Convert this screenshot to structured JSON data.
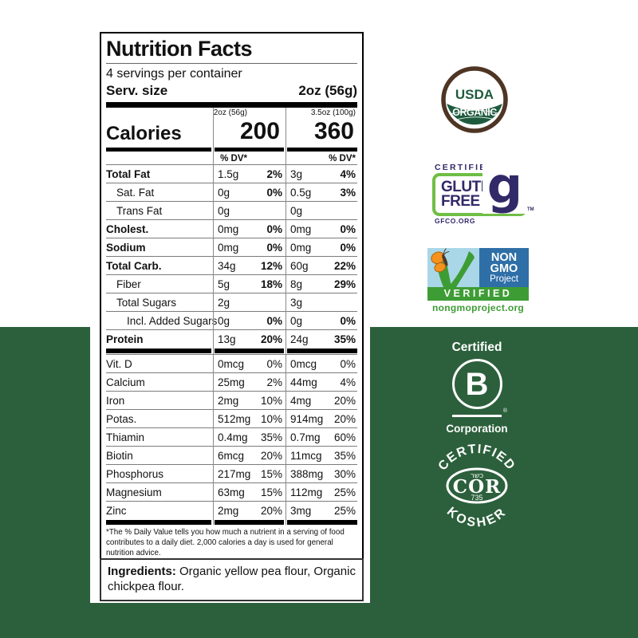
{
  "colors": {
    "background_green": "#2C603C",
    "label_black": "#000000",
    "usda_green": "#1E5B3E",
    "usda_brown": "#4E3524",
    "gf_purple": "#322968",
    "gf_green": "#6FBE45",
    "ngmo_sky": "#A9D7E8",
    "ngmo_blue": "#2E6FA7",
    "ngmo_green": "#3E9C35",
    "ngmo_orange": "#F5921E"
  },
  "nutrition_label": {
    "title": "Nutrition Facts",
    "servings_per_container": "4 servings per container",
    "serving_size_label": "Serv. size",
    "serving_size_value": "2oz (56g)",
    "calories_label": "Calories",
    "columns": [
      {
        "header": "2oz (56g)",
        "calories": "200",
        "dv_header": "% DV*"
      },
      {
        "header": "3.5oz (100g)",
        "calories": "360",
        "dv_header": "% DV*"
      }
    ],
    "rows": [
      {
        "name": "Total Fat",
        "bold": true,
        "indent": 0,
        "v1": "1.5g",
        "dv1": "2%",
        "v2": "3g",
        "dv2": "4%"
      },
      {
        "name": "Sat. Fat",
        "bold": false,
        "indent": 1,
        "v1": "0g",
        "dv1": "0%",
        "v2": "0.5g",
        "dv2": "3%"
      },
      {
        "name": "Trans Fat",
        "bold": false,
        "indent": 1,
        "v1": "0g",
        "dv1": "",
        "v2": "0g",
        "dv2": ""
      },
      {
        "name": "Cholest.",
        "bold": true,
        "indent": 0,
        "v1": "0mg",
        "dv1": "0%",
        "v2": "0mg",
        "dv2": "0%"
      },
      {
        "name": "Sodium",
        "bold": true,
        "indent": 0,
        "v1": "0mg",
        "dv1": "0%",
        "v2": "0mg",
        "dv2": "0%"
      },
      {
        "name": "Total Carb.",
        "bold": true,
        "indent": 0,
        "v1": "34g",
        "dv1": "12%",
        "v2": "60g",
        "dv2": "22%"
      },
      {
        "name": "Fiber",
        "bold": false,
        "indent": 1,
        "v1": "5g",
        "dv1": "18%",
        "v2": "8g",
        "dv2": "29%"
      },
      {
        "name": "Total Sugars",
        "bold": false,
        "indent": 1,
        "v1": "2g",
        "dv1": "",
        "v2": "3g",
        "dv2": ""
      },
      {
        "name": "Incl. Added Sugars",
        "bold": false,
        "indent": 2,
        "v1": "0g",
        "dv1": "0%",
        "v2": "0g",
        "dv2": "0%"
      },
      {
        "name": "Protein",
        "bold": true,
        "indent": 0,
        "v1": "13g",
        "dv1": "20%",
        "v2": "24g",
        "dv2": "35%"
      }
    ],
    "micronutrients": [
      {
        "name": "Vit. D",
        "v1": "0mcg",
        "dv1": "0%",
        "v2": "0mcg",
        "dv2": "0%"
      },
      {
        "name": "Calcium",
        "v1": "25mg",
        "dv1": "2%",
        "v2": "44mg",
        "dv2": "4%"
      },
      {
        "name": "Iron",
        "v1": "2mg",
        "dv1": "10%",
        "v2": "4mg",
        "dv2": "20%"
      },
      {
        "name": "Potas.",
        "v1": "512mg",
        "dv1": "10%",
        "v2": "914mg",
        "dv2": "20%"
      },
      {
        "name": "Thiamin",
        "v1": "0.4mg",
        "dv1": "35%",
        "v2": "0.7mg",
        "dv2": "60%"
      },
      {
        "name": "Biotin",
        "v1": "6mcg",
        "dv1": "20%",
        "v2": "11mcg",
        "dv2": "35%"
      },
      {
        "name": "Phosphorus",
        "v1": "217mg",
        "dv1": "15%",
        "v2": "388mg",
        "dv2": "30%"
      },
      {
        "name": "Magnesium",
        "v1": "63mg",
        "dv1": "15%",
        "v2": "112mg",
        "dv2": "25%"
      },
      {
        "name": "Zinc",
        "v1": "2mg",
        "dv1": "20%",
        "v2": "3mg",
        "dv2": "25%"
      }
    ],
    "footnote": "*The % Daily Value tells you how much a nutrient in a serving of food contributes to a daily diet. 2,000 calories a day is used for general nutrition advice.",
    "ingredients_label": "Ingredients:",
    "ingredients_text": " Organic yellow pea flour, Organic chickpea flour."
  },
  "badges": {
    "usda": {
      "line1": "USDA",
      "line2": "ORGANIC"
    },
    "gluten_free": {
      "certified": "CERTIFIED",
      "line1": "GLUTEN",
      "line2": "FREE",
      "g": "g",
      "tm": "TM",
      "url": "GFCO.ORG"
    },
    "non_gmo": {
      "line1": "NON",
      "line2": "GMO",
      "line3": "Project",
      "verified": "VERIFIED",
      "url": "nongmoproject.org"
    },
    "b_corp": {
      "certified": "Certified",
      "letter": "B",
      "registered": "®",
      "corporation": "Corporation"
    },
    "kosher": {
      "top": "CERTIFIED",
      "hebrew": "כשר",
      "center": "COR",
      "number": "735",
      "bottom": "KOSHER"
    }
  }
}
